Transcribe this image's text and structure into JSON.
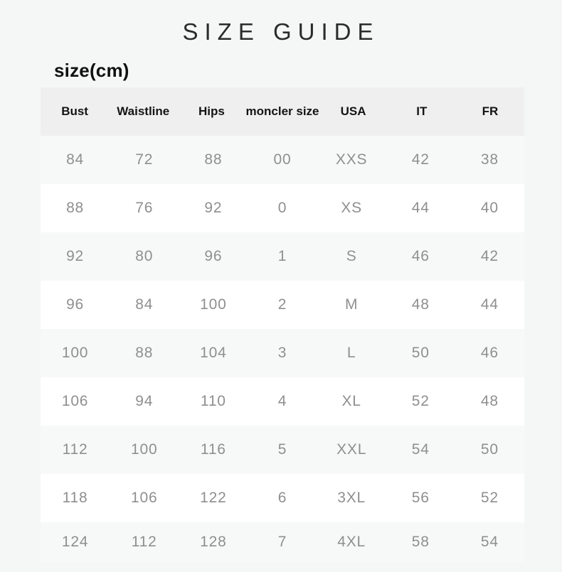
{
  "page": {
    "title": "SIZE GUIDE",
    "unit_label": "size(cm)"
  },
  "table": {
    "headers": [
      "Bust",
      "Waistline",
      "Hips",
      "moncler size",
      "USA",
      "IT",
      "FR"
    ],
    "rows": [
      [
        "84",
        "72",
        "88",
        "00",
        "XXS",
        "42",
        "38"
      ],
      [
        "88",
        "76",
        "92",
        "0",
        "XS",
        "44",
        "40"
      ],
      [
        "92",
        "80",
        "96",
        "1",
        "S",
        "46",
        "42"
      ],
      [
        "96",
        "84",
        "100",
        "2",
        "M",
        "48",
        "44"
      ],
      [
        "100",
        "88",
        "104",
        "3",
        "L",
        "50",
        "46"
      ],
      [
        "106",
        "94",
        "110",
        "4",
        "XL",
        "52",
        "48"
      ],
      [
        "112",
        "100",
        "116",
        "5",
        "XXL",
        "54",
        "50"
      ],
      [
        "118",
        "106",
        "122",
        "6",
        "3XL",
        "56",
        "52"
      ],
      [
        "124",
        "112",
        "128",
        "7",
        "4XL",
        "58",
        "54"
      ]
    ]
  },
  "colors": {
    "page_bg": "#f5f6f6",
    "header_bg": "#efefef",
    "row_odd": "#ffffff",
    "row_even": "#f7f8f8",
    "title_color": "#2b2b2b",
    "label_color": "#111111",
    "header_text": "#141414",
    "data_text": "#8f8f8f"
  }
}
